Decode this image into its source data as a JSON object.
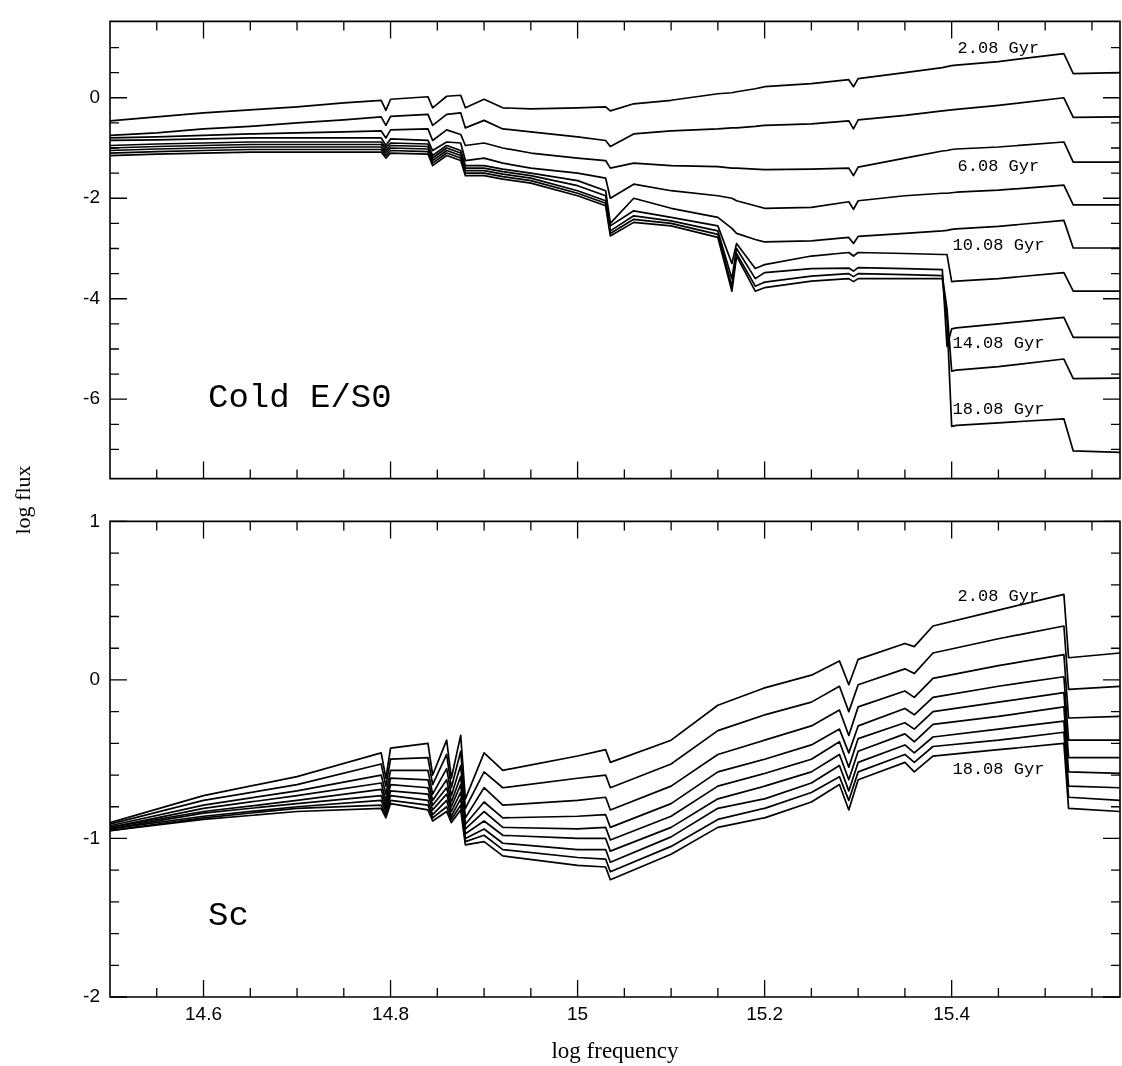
{
  "chart_data": [
    {
      "type": "line",
      "x": [
        14.5,
        14.55,
        14.6,
        14.65,
        14.7,
        14.75,
        14.79,
        14.795,
        14.8,
        14.84,
        14.845,
        14.86,
        14.875,
        14.88,
        14.9,
        14.92,
        14.95,
        15.0,
        15.03,
        15.035,
        15.06,
        15.1,
        15.15,
        15.165,
        15.17,
        15.19,
        15.2,
        15.25,
        15.29,
        15.295,
        15.3,
        15.35,
        15.39,
        15.395,
        15.4,
        15.405,
        15.45,
        15.52,
        15.53,
        15.58
      ],
      "series": [
        {
          "name": "2.08 Gyr",
          "color": "#000000",
          "values": [
            -0.46,
            -0.38,
            -0.3,
            -0.24,
            -0.18,
            -0.1,
            -0.05,
            -0.25,
            -0.03,
            0.02,
            -0.2,
            0.03,
            0.05,
            -0.2,
            -0.03,
            -0.2,
            -0.22,
            -0.2,
            -0.18,
            -0.26,
            -0.12,
            -0.05,
            0.08,
            0.1,
            0.12,
            0.18,
            0.22,
            0.28,
            0.36,
            0.22,
            0.38,
            0.5,
            0.6,
            0.62,
            0.64,
            0.65,
            0.72,
            0.88,
            0.48,
            0.5
          ]
        },
        {
          "color": "#000000",
          "values": [
            -0.75,
            -0.7,
            -0.62,
            -0.57,
            -0.5,
            -0.44,
            -0.38,
            -0.55,
            -0.37,
            -0.33,
            -0.55,
            -0.33,
            -0.3,
            -0.6,
            -0.45,
            -0.62,
            -0.68,
            -0.78,
            -0.85,
            -0.97,
            -0.72,
            -0.66,
            -0.62,
            -0.6,
            -0.6,
            -0.57,
            -0.55,
            -0.52,
            -0.46,
            -0.62,
            -0.44,
            -0.35,
            -0.26,
            -0.25,
            -0.24,
            -0.23,
            -0.15,
            0.0,
            -0.39,
            -0.38
          ]
        },
        {
          "name": "6.08 Gyr",
          "color": "#000000",
          "values": [
            -0.8,
            -0.78,
            -0.75,
            -0.72,
            -0.7,
            -0.68,
            -0.66,
            -0.8,
            -0.64,
            -0.62,
            -0.85,
            -0.64,
            -0.73,
            -0.95,
            -0.9,
            -1.0,
            -1.1,
            -1.2,
            -1.25,
            -1.4,
            -1.3,
            -1.35,
            -1.37,
            -1.4,
            -1.4,
            -1.42,
            -1.43,
            -1.42,
            -1.4,
            -1.55,
            -1.38,
            -1.2,
            -1.06,
            -1.05,
            -1.03,
            -1.02,
            -0.98,
            -0.88,
            -1.28,
            -1.28
          ]
        },
        {
          "color": "#000000",
          "values": [
            -0.85,
            -0.84,
            -0.82,
            -0.8,
            -0.8,
            -0.8,
            -0.8,
            -0.95,
            -0.82,
            -0.85,
            -1.05,
            -0.88,
            -0.9,
            -1.25,
            -1.2,
            -1.3,
            -1.4,
            -1.5,
            -1.6,
            -2.0,
            -1.72,
            -1.85,
            -1.95,
            -2.0,
            -2.05,
            -2.15,
            -2.2,
            -2.18,
            -2.07,
            -2.22,
            -2.05,
            -1.95,
            -1.9,
            -1.9,
            -1.89,
            -1.88,
            -1.84,
            -1.74,
            -2.13,
            -2.13
          ]
        },
        {
          "name": "10.08 Gyr",
          "color": "#000000",
          "values": [
            -0.95,
            -0.92,
            -0.9,
            -0.88,
            -0.88,
            -0.88,
            -0.88,
            -1.0,
            -0.9,
            -0.92,
            -1.15,
            -0.95,
            -1.05,
            -1.35,
            -1.35,
            -1.42,
            -1.5,
            -1.65,
            -1.85,
            -2.5,
            -2.0,
            -2.2,
            -2.38,
            -2.6,
            -2.7,
            -2.82,
            -2.87,
            -2.85,
            -2.78,
            -2.9,
            -2.76,
            -2.7,
            -2.65,
            -2.64,
            -2.62,
            -2.61,
            -2.56,
            -2.44,
            -2.99,
            -2.99
          ]
        },
        {
          "color": "#000000",
          "values": [
            -1.0,
            -0.97,
            -0.95,
            -0.93,
            -0.93,
            -0.93,
            -0.93,
            -1.05,
            -0.95,
            -0.97,
            -1.2,
            -1.0,
            -1.1,
            -1.4,
            -1.4,
            -1.47,
            -1.55,
            -1.75,
            -1.95,
            -2.55,
            -2.25,
            -2.38,
            -2.55,
            -3.3,
            -2.9,
            -3.4,
            -3.32,
            -3.15,
            -3.08,
            -3.15,
            -3.08,
            -3.1,
            -3.12,
            -3.12,
            -3.66,
            -3.65,
            -3.6,
            -3.48,
            -3.85,
            -3.85
          ]
        },
        {
          "name": "14.08 Gyr",
          "color": "#000000",
          "values": [
            -1.05,
            -1.02,
            -1.0,
            -0.98,
            -0.98,
            -0.98,
            -0.98,
            -1.1,
            -1.0,
            -1.02,
            -1.25,
            -1.05,
            -1.15,
            -1.45,
            -1.45,
            -1.52,
            -1.6,
            -1.85,
            -2.05,
            -2.65,
            -2.35,
            -2.45,
            -2.65,
            -3.6,
            -3.0,
            -3.6,
            -3.48,
            -3.4,
            -3.39,
            -3.45,
            -3.38,
            -3.4,
            -3.42,
            -4.95,
            -4.6,
            -4.58,
            -4.5,
            -4.37,
            -4.77,
            -4.77
          ]
        },
        {
          "color": "#000000",
          "values": [
            -1.1,
            -1.07,
            -1.05,
            -1.03,
            -1.03,
            -1.03,
            -1.03,
            -1.15,
            -1.05,
            -1.07,
            -1.3,
            -1.1,
            -1.2,
            -1.5,
            -1.5,
            -1.57,
            -1.65,
            -1.9,
            -2.1,
            -2.7,
            -2.42,
            -2.5,
            -2.72,
            -3.75,
            -3.1,
            -3.75,
            -3.67,
            -3.55,
            -3.5,
            -3.56,
            -3.5,
            -3.52,
            -3.54,
            -4.2,
            -5.44,
            -5.42,
            -5.35,
            -5.2,
            -5.59,
            -5.58
          ]
        },
        {
          "name": "18.08 Gyr",
          "color": "#000000",
          "values": [
            -1.15,
            -1.12,
            -1.1,
            -1.08,
            -1.08,
            -1.08,
            -1.08,
            -1.2,
            -1.1,
            -1.12,
            -1.35,
            -1.15,
            -1.25,
            -1.55,
            -1.55,
            -1.62,
            -1.7,
            -1.95,
            -2.15,
            -2.75,
            -2.48,
            -2.55,
            -2.78,
            -3.85,
            -3.15,
            -3.85,
            -3.78,
            -3.65,
            -3.6,
            -3.66,
            -3.6,
            -3.6,
            -3.6,
            -4.4,
            -6.54,
            -6.52,
            -6.47,
            -6.39,
            -7.03,
            -7.06
          ]
        }
      ],
      "xlim": [
        14.5,
        15.58
      ],
      "ylim": [
        -7.58,
        1.52
      ],
      "xticks": [
        {
          "value": 14.55,
          "label": null
        },
        14.6,
        {
          "value": 14.65,
          "label": null
        },
        {
          "value": 14.7,
          "label": null
        },
        {
          "value": 14.75,
          "label": null
        },
        14.8,
        {
          "value": 14.85,
          "label": null
        },
        {
          "value": 14.9,
          "label": null
        },
        {
          "value": 14.95,
          "label": null
        },
        15,
        {
          "value": 15.05,
          "label": null
        },
        {
          "value": 15.1,
          "label": null
        },
        {
          "value": 15.15,
          "label": null
        },
        15.2,
        {
          "value": 15.25,
          "label": null
        },
        {
          "value": 15.3,
          "label": null
        },
        {
          "value": 15.35,
          "label": null
        },
        15.4,
        {
          "value": 15.45,
          "label": null
        },
        {
          "value": 15.5,
          "label": null
        },
        {
          "value": 15.55,
          "label": null
        }
      ],
      "yticks": [
        {
          "value": -7,
          "label": null
        },
        {
          "value": -6.5,
          "label": null
        },
        -6,
        {
          "value": -5.5,
          "label": null
        },
        {
          "value": -5,
          "label": null
        },
        {
          "value": -4.5,
          "label": null
        },
        -4,
        {
          "value": -3.5,
          "label": null
        },
        {
          "value": -3,
          "label": null
        },
        {
          "value": -2.5,
          "label": null
        },
        -2,
        {
          "value": -1.5,
          "label": null
        },
        {
          "value": -1,
          "label": null
        },
        {
          "value": -0.5,
          "label": null
        },
        0,
        {
          "value": 0.5,
          "label": null
        },
        {
          "value": 1,
          "label": null
        }
      ],
      "ylabel": "log flux",
      "annotations": [
        "Cold E/S0"
      ],
      "tick_labels": "y",
      "marker": "none"
    },
    {
      "type": "line",
      "x": [
        14.5,
        14.6,
        14.7,
        14.79,
        14.795,
        14.8,
        14.84,
        14.845,
        14.86,
        14.865,
        14.875,
        14.88,
        14.9,
        14.92,
        15.0,
        15.03,
        15.035,
        15.1,
        15.15,
        15.2,
        15.25,
        15.28,
        15.29,
        15.3,
        15.35,
        15.36,
        15.38,
        15.45,
        15.52,
        15.525,
        15.58
      ],
      "series": [
        {
          "name": "2.08 Gyr",
          "color": "#000000",
          "values": [
            -0.9,
            -0.73,
            -0.61,
            -0.46,
            -0.62,
            -0.43,
            -0.4,
            -0.6,
            -0.38,
            -0.62,
            -0.35,
            -0.75,
            -0.46,
            -0.57,
            -0.48,
            -0.44,
            -0.52,
            -0.38,
            -0.16,
            -0.05,
            0.03,
            0.12,
            -0.03,
            0.13,
            0.23,
            0.21,
            0.34,
            0.44,
            0.54,
            0.14,
            0.17
          ]
        },
        {
          "color": "#000000",
          "values": [
            -0.91,
            -0.76,
            -0.66,
            -0.53,
            -0.67,
            -0.5,
            -0.49,
            -0.66,
            -0.47,
            -0.68,
            -0.45,
            -0.81,
            -0.58,
            -0.68,
            -0.62,
            -0.6,
            -0.68,
            -0.53,
            -0.32,
            -0.22,
            -0.14,
            -0.04,
            -0.2,
            -0.03,
            0.07,
            0.04,
            0.17,
            0.26,
            0.34,
            -0.06,
            -0.04
          ]
        },
        {
          "color": "#000000",
          "values": [
            -0.92,
            -0.79,
            -0.7,
            -0.6,
            -0.72,
            -0.57,
            -0.57,
            -0.72,
            -0.56,
            -0.73,
            -0.54,
            -0.87,
            -0.68,
            -0.79,
            -0.76,
            -0.74,
            -0.82,
            -0.67,
            -0.47,
            -0.38,
            -0.29,
            -0.19,
            -0.35,
            -0.17,
            -0.07,
            -0.11,
            0.01,
            0.09,
            0.16,
            -0.24,
            -0.23
          ]
        },
        {
          "color": "#000000",
          "values": [
            -0.93,
            -0.81,
            -0.73,
            -0.65,
            -0.76,
            -0.62,
            -0.63,
            -0.76,
            -0.63,
            -0.77,
            -0.61,
            -0.91,
            -0.77,
            -0.87,
            -0.86,
            -0.85,
            -0.93,
            -0.78,
            -0.58,
            -0.5,
            -0.41,
            -0.31,
            -0.46,
            -0.29,
            -0.18,
            -0.22,
            -0.11,
            -0.04,
            0.02,
            -0.38,
            -0.38
          ]
        },
        {
          "color": "#000000",
          "values": [
            -0.93,
            -0.83,
            -0.76,
            -0.69,
            -0.79,
            -0.66,
            -0.68,
            -0.79,
            -0.68,
            -0.8,
            -0.66,
            -0.94,
            -0.83,
            -0.93,
            -0.94,
            -0.93,
            -1.01,
            -0.86,
            -0.67,
            -0.59,
            -0.5,
            -0.39,
            -0.55,
            -0.37,
            -0.27,
            -0.31,
            -0.2,
            -0.14,
            -0.08,
            -0.49,
            -0.49
          ]
        },
        {
          "color": "#000000",
          "values": [
            -0.94,
            -0.84,
            -0.78,
            -0.73,
            -0.81,
            -0.7,
            -0.72,
            -0.82,
            -0.72,
            -0.83,
            -0.71,
            -0.97,
            -0.89,
            -0.98,
            -1.0,
            -1.0,
            -1.08,
            -0.93,
            -0.75,
            -0.67,
            -0.58,
            -0.47,
            -0.63,
            -0.45,
            -0.34,
            -0.39,
            -0.28,
            -0.23,
            -0.17,
            -0.58,
            -0.59
          ]
        },
        {
          "color": "#000000",
          "values": [
            -0.94,
            -0.86,
            -0.8,
            -0.76,
            -0.83,
            -0.73,
            -0.76,
            -0.85,
            -0.76,
            -0.86,
            -0.75,
            -1.0,
            -0.94,
            -1.03,
            -1.07,
            -1.07,
            -1.15,
            -0.99,
            -0.81,
            -0.75,
            -0.65,
            -0.54,
            -0.7,
            -0.52,
            -0.41,
            -0.46,
            -0.36,
            -0.31,
            -0.26,
            -0.67,
            -0.68
          ]
        },
        {
          "color": "#000000",
          "values": [
            -0.95,
            -0.87,
            -0.81,
            -0.79,
            -0.85,
            -0.76,
            -0.79,
            -0.87,
            -0.8,
            -0.88,
            -0.79,
            -1.02,
            -0.98,
            -1.07,
            -1.12,
            -1.13,
            -1.21,
            -1.05,
            -0.88,
            -0.81,
            -0.71,
            -0.61,
            -0.76,
            -0.58,
            -0.47,
            -0.52,
            -0.42,
            -0.38,
            -0.33,
            -0.74,
            -0.76
          ]
        },
        {
          "name": "18.08 Gyr",
          "color": "#000000",
          "values": [
            -0.95,
            -0.88,
            -0.83,
            -0.81,
            -0.87,
            -0.78,
            -0.82,
            -0.89,
            -0.83,
            -0.9,
            -0.82,
            -1.04,
            -1.02,
            -1.11,
            -1.17,
            -1.18,
            -1.26,
            -1.1,
            -0.93,
            -0.87,
            -0.77,
            -0.66,
            -0.82,
            -0.63,
            -0.52,
            -0.58,
            -0.48,
            -0.44,
            -0.4,
            -0.81,
            -0.83
          ]
        }
      ],
      "xlim": [
        14.5,
        15.58
      ],
      "ylim": [
        -2,
        1
      ],
      "xticks": [
        {
          "value": 14.55,
          "label": null
        },
        14.6,
        {
          "value": 14.65,
          "label": null
        },
        {
          "value": 14.7,
          "label": null
        },
        {
          "value": 14.75,
          "label": null
        },
        14.8,
        {
          "value": 14.85,
          "label": null
        },
        {
          "value": 14.9,
          "label": null
        },
        {
          "value": 14.95,
          "label": null
        },
        15,
        {
          "value": 15.05,
          "label": null
        },
        {
          "value": 15.1,
          "label": null
        },
        {
          "value": 15.15,
          "label": null
        },
        15.2,
        {
          "value": 15.25,
          "label": null
        },
        {
          "value": 15.3,
          "label": null
        },
        {
          "value": 15.35,
          "label": null
        },
        15.4,
        {
          "value": 15.45,
          "label": null
        },
        {
          "value": 15.5,
          "label": null
        },
        {
          "value": 15.55,
          "label": null
        }
      ],
      "yticks": [
        -2,
        {
          "value": -1.8,
          "label": null
        },
        {
          "value": -1.6,
          "label": null
        },
        {
          "value": -1.4,
          "label": null
        },
        {
          "value": -1.2,
          "label": null
        },
        -1,
        {
          "value": -0.8,
          "label": null
        },
        {
          "value": -0.6,
          "label": null
        },
        {
          "value": -0.4,
          "label": null
        },
        {
          "value": -0.2,
          "label": null
        },
        0,
        {
          "value": 0.2,
          "label": null
        },
        {
          "value": 0.4,
          "label": null
        },
        {
          "value": 0.6,
          "label": null
        },
        {
          "value": 0.8,
          "label": null
        },
        1
      ],
      "xlabel": "log frequency",
      "annotations": [
        "Sc"
      ],
      "marker": "none"
    }
  ]
}
